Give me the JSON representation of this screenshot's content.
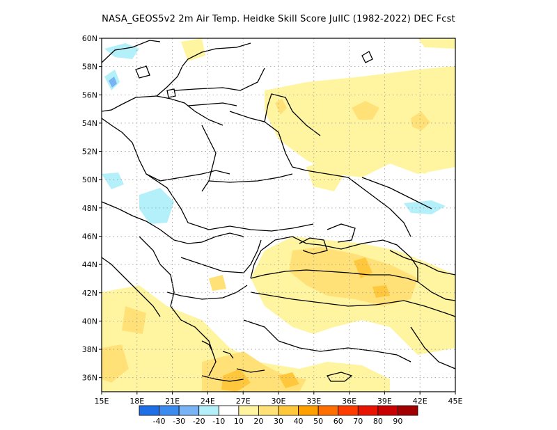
{
  "title": "NASA_GEOS5v2  2m Air Temp. Heidke Skill Score JulIC (1982-2022) DEC Fcst",
  "map": {
    "lon_labels": [
      "15E",
      "18E",
      "21E",
      "24E",
      "27E",
      "30E",
      "33E",
      "36E",
      "39E",
      "42E",
      "45E"
    ],
    "lat_labels": [
      "60N",
      "58N",
      "56N",
      "54N",
      "52N",
      "50N",
      "48N",
      "46N",
      "44N",
      "42N",
      "40N",
      "38N",
      "36N"
    ],
    "lon_range": [
      15,
      45
    ],
    "lat_range": [
      35,
      60
    ],
    "grid": "dotted"
  },
  "colorbar": {
    "labels": [
      "-40",
      "-30",
      "-20",
      "-10",
      "10",
      "20",
      "30",
      "40",
      "50",
      "60",
      "70",
      "80",
      "90"
    ],
    "colors": [
      "#1e6ee6",
      "#3c8cf0",
      "#78b4f5",
      "#b4f0fa",
      "#ffffff",
      "#fff5a0",
      "#ffe178",
      "#ffc83c",
      "#ffa000",
      "#ff6e00",
      "#ff3c00",
      "#e61400",
      "#c80000",
      "#a00000"
    ]
  }
}
